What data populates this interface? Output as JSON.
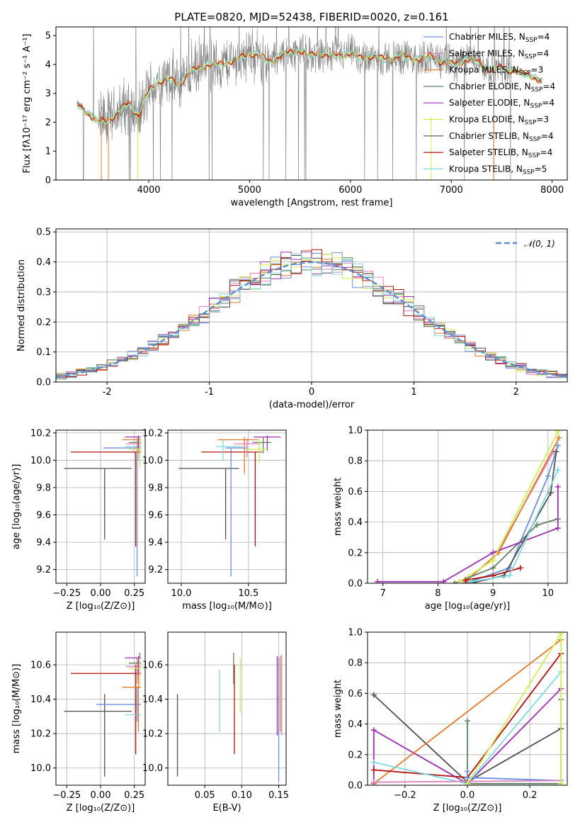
{
  "title": "PLATE=0820, MJD=52438, FIBERID=0020, z=0.161",
  "colors": {
    "chabrier_miles": "#6a8fdc",
    "salpeter_miles": "#e080c0",
    "kroupa_miles": "#e07a28",
    "chabrier_elodie": "#5e8060",
    "salpeter_elodie": "#9a30b0",
    "kroupa_elodie": "#d0ee50",
    "chabrier_stelib": "#505050",
    "salpeter_stelib": "#b01010",
    "kroupa_stelib": "#80d8e0",
    "spectrum": "#808080",
    "gauss": "#5a8ed0"
  },
  "legend": [
    {
      "key": "chabrier_miles",
      "pre": "Chabrier MILES, N",
      "sub": "SSP",
      "post": "=4"
    },
    {
      "key": "salpeter_miles",
      "pre": "Salpeter MILES, N",
      "sub": "SSP",
      "post": "=4"
    },
    {
      "key": "kroupa_miles",
      "pre": "Kroupa MILES, N",
      "sub": "SSP",
      "post": "=3"
    },
    {
      "key": "chabrier_elodie",
      "pre": "Chabrier ELODIE, N",
      "sub": "SSP",
      "post": "=4"
    },
    {
      "key": "salpeter_elodie",
      "pre": "Salpeter ELODIE, N",
      "sub": "SSP",
      "post": "=4"
    },
    {
      "key": "kroupa_elodie",
      "pre": "Kroupa ELODIE, N",
      "sub": "SSP",
      "post": "=3"
    },
    {
      "key": "chabrier_stelib",
      "pre": "Chabrier STELIB, N",
      "sub": "SSP",
      "post": "=4"
    },
    {
      "key": "salpeter_stelib",
      "pre": "Salpeter STELIB, N",
      "sub": "SSP",
      "post": "=4"
    },
    {
      "key": "kroupa_stelib",
      "pre": "Kroupa STELIB, N",
      "sub": "SSP",
      "post": "=5"
    }
  ],
  "chart_data": [
    {
      "id": "spectrum",
      "type": "line",
      "xlabel": "wavelength [Angstrom, rest frame]",
      "ylabel": "Flux [fλ10⁻¹⁷ erg cm⁻² s⁻¹ A⁻¹]",
      "xlim": [
        3080,
        8150
      ],
      "ylim": [
        0,
        5.3
      ],
      "xticks": [
        4000,
        5000,
        6000,
        7000,
        8000
      ],
      "yticks": [
        0,
        1,
        2,
        3,
        4,
        5
      ],
      "model_x": [
        3300,
        3400,
        3500,
        3600,
        3700,
        3800,
        3900,
        4000,
        4100,
        4200,
        4300,
        4400,
        4500,
        4600,
        4700,
        4800,
        4900,
        5000,
        5100,
        5200,
        5300,
        5400,
        5500,
        5600,
        5700,
        5800,
        5900,
        6000,
        6100,
        6200,
        6300,
        6400,
        6500,
        6600,
        6700,
        6800,
        6900,
        7000,
        7100,
        7200,
        7300,
        7400,
        7500,
        7600,
        7700,
        7800,
        7900
      ],
      "model_y": [
        2.6,
        2.3,
        2.0,
        2.1,
        2.3,
        2.7,
        2.2,
        3.1,
        3.4,
        3.5,
        3.3,
        3.7,
        3.9,
        4.0,
        4.0,
        4.1,
        4.2,
        4.4,
        4.3,
        4.1,
        4.3,
        4.4,
        4.5,
        4.3,
        4.4,
        4.3,
        4.3,
        4.4,
        4.2,
        4.3,
        4.2,
        4.2,
        4.3,
        4.2,
        4.2,
        4.3,
        4.1,
        4.0,
        4.1,
        4.2,
        4.0,
        3.8,
        3.9,
        3.8,
        3.7,
        3.6,
        3.4
      ]
    },
    {
      "id": "residuals",
      "type": "histogram",
      "xlabel": "(data-model)/error",
      "ylabel": "Normed distribution",
      "xlim": [
        -2.5,
        2.5
      ],
      "ylim": [
        0,
        0.51
      ],
      "xticks": [
        -2,
        -1,
        0,
        1,
        2
      ],
      "yticks": [
        0.0,
        0.1,
        0.2,
        0.3,
        0.4,
        0.5
      ],
      "gauss_label": "𝒩(0, 1)"
    },
    {
      "id": "age_vs_Z",
      "type": "errorbar",
      "xlabel": "Z [log₁₀(Z/Z⊙)]",
      "ylabel": "age  [log₁₀(age/yr)]",
      "xlim": [
        -0.33,
        0.33
      ],
      "ylim": [
        9.1,
        10.22
      ],
      "xticks": [
        -0.25,
        0.0,
        0.25
      ],
      "xticklabels": [
        "−0.25",
        "0.00",
        "0.25"
      ],
      "yticks": [
        9.2,
        9.4,
        9.6,
        9.8,
        10.0,
        10.2
      ],
      "points": [
        {
          "s": "chabrier_stelib",
          "x": 0.03,
          "xe": [
            0.3,
            0.2
          ],
          "y": 9.94,
          "ye": [
            0.52,
            0
          ]
        },
        {
          "s": "chabrier_miles",
          "x": 0.27,
          "xe": [
            0.25,
            0.03
          ],
          "y": 10.09,
          "ye": [
            0.94,
            0.0
          ]
        },
        {
          "s": "salpeter_stelib",
          "x": 0.26,
          "xe": [
            0.48,
            0.04
          ],
          "y": 10.06,
          "ye": [
            0.69,
            0.0
          ]
        },
        {
          "s": "kroupa_stelib",
          "x": 0.28,
          "xe": [
            0.1,
            0.02
          ],
          "y": 10.1,
          "ye": [
            0.1,
            0.05
          ]
        },
        {
          "s": "salpeter_miles",
          "x": 0.27,
          "xe": [
            0.08,
            0.03
          ],
          "y": 10.12,
          "ye": [
            0.1,
            0.04
          ]
        },
        {
          "s": "kroupa_miles",
          "x": 0.28,
          "xe": [
            0.12,
            0.02
          ],
          "y": 10.15,
          "ye": [
            0.1,
            0.02
          ]
        },
        {
          "s": "salpeter_elodie",
          "x": 0.28,
          "xe": [
            0.1,
            0.02
          ],
          "y": 10.17,
          "ye": [
            0.08,
            0.01
          ]
        },
        {
          "s": "chabrier_elodie",
          "x": 0.29,
          "xe": [
            0.08,
            0.01
          ],
          "y": 10.13,
          "ye": [
            0.08,
            0.04
          ]
        },
        {
          "s": "kroupa_elodie",
          "x": 0.29,
          "xe": [
            0.08,
            0.01
          ],
          "y": 10.08,
          "ye": [
            0.13,
            0.09
          ]
        }
      ]
    },
    {
      "id": "age_vs_mass",
      "type": "errorbar",
      "xlabel": "mass [log₁₀(M/M⊙)]",
      "ylabel": "",
      "xlim": [
        9.9,
        10.78
      ],
      "ylim": [
        9.1,
        10.22
      ],
      "xticks": [
        10.0,
        10.5
      ],
      "xticklabels": [
        "10.0",
        "10.5"
      ],
      "yticks": [
        9.2,
        9.4,
        9.6,
        9.8,
        10.0,
        10.2
      ],
      "points": [
        {
          "s": "chabrier_stelib",
          "x": 10.33,
          "xe": [
            0.35,
            0.1
          ],
          "y": 9.94,
          "ye": [
            0.52,
            0
          ]
        },
        {
          "s": "chabrier_miles",
          "x": 10.37,
          "xe": [
            0.04,
            0.12
          ],
          "y": 10.09,
          "ye": [
            0.94,
            0.0
          ]
        },
        {
          "s": "salpeter_stelib",
          "x": 10.55,
          "xe": [
            0.4,
            0.05
          ],
          "y": 10.06,
          "ye": [
            0.69,
            0.0
          ]
        },
        {
          "s": "kroupa_stelib",
          "x": 10.31,
          "xe": [
            0.05,
            0.15
          ],
          "y": 10.1,
          "ye": [
            0.1,
            0.05
          ]
        },
        {
          "s": "salpeter_miles",
          "x": 10.49,
          "xe": [
            0.1,
            0.1
          ],
          "y": 10.12,
          "ye": [
            0.1,
            0.04
          ]
        },
        {
          "s": "kroupa_miles",
          "x": 10.47,
          "xe": [
            0.2,
            0.1
          ],
          "y": 10.15,
          "ye": [
            0.25,
            0.02
          ]
        },
        {
          "s": "salpeter_elodie",
          "x": 10.64,
          "xe": [
            0.1,
            0.1
          ],
          "y": 10.17,
          "ye": [
            0.1,
            0.01
          ]
        },
        {
          "s": "chabrier_elodie",
          "x": 10.61,
          "xe": [
            0.08,
            0.06
          ],
          "y": 10.13,
          "ye": [
            0.08,
            0.04
          ]
        },
        {
          "s": "kroupa_elodie",
          "x": 10.58,
          "xe": [
            0.1,
            0.06
          ],
          "y": 10.08,
          "ye": [
            0.1,
            0.09
          ]
        }
      ]
    },
    {
      "id": "weight_vs_age",
      "type": "line",
      "xlabel": "age  [log₁₀(age/yr)]",
      "ylabel": "mass weight",
      "xlim": [
        6.72,
        10.35
      ],
      "ylim": [
        0,
        1
      ],
      "xticks": [
        7,
        8,
        9,
        10
      ],
      "yticks": [
        0.0,
        0.2,
        0.4,
        0.6,
        0.8,
        1.0
      ],
      "series": [
        {
          "s": "chabrier_miles",
          "x": [
            8.5,
            9.3,
            10.0,
            10.18
          ],
          "y": [
            0.0,
            0.1,
            0.7,
            0.9
          ]
        },
        {
          "s": "salpeter_miles",
          "x": [
            8.4,
            9.0,
            10.1
          ],
          "y": [
            0.01,
            0.15,
            0.86
          ]
        },
        {
          "s": "kroupa_miles",
          "x": [
            8.5,
            9.1,
            10.2
          ],
          "y": [
            0.01,
            0.2,
            0.95
          ]
        },
        {
          "s": "chabrier_elodie",
          "x": [
            8.3,
            9.0,
            9.8,
            10.18
          ],
          "y": [
            0.0,
            0.1,
            0.38,
            0.42
          ]
        },
        {
          "s": "salpeter_elodie",
          "x": [
            6.9,
            8.1,
            9.0,
            10.18,
            10.18
          ],
          "y": [
            0.01,
            0.01,
            0.2,
            0.36,
            0.63
          ]
        },
        {
          "s": "kroupa_elodie",
          "x": [
            8.4,
            9.0,
            10.18
          ],
          "y": [
            0.01,
            0.15,
            0.99
          ]
        },
        {
          "s": "chabrier_stelib",
          "x": [
            8.6,
            9.2,
            10.05,
            10.15
          ],
          "y": [
            0.0,
            0.05,
            0.59,
            0.86
          ]
        },
        {
          "s": "salpeter_stelib",
          "x": [
            8.5,
            9.0,
            9.5
          ],
          "y": [
            0.02,
            0.05,
            0.1
          ]
        },
        {
          "s": "kroupa_stelib",
          "x": [
            8.6,
            9.3,
            10.18
          ],
          "y": [
            0.01,
            0.05,
            0.74
          ]
        }
      ]
    },
    {
      "id": "mass_vs_Z",
      "type": "errorbar",
      "xlabel": "Z [log₁₀(Z/Z⊙)]",
      "ylabel": "mass [log₁₀(M/M⊙)]",
      "xlim": [
        -0.33,
        0.33
      ],
      "ylim": [
        9.9,
        10.79
      ],
      "xticks": [
        -0.25,
        0.0,
        0.25
      ],
      "xticklabels": [
        "−0.25",
        "0.00",
        "0.25"
      ],
      "yticks": [
        10.0,
        10.2,
        10.4,
        10.6
      ],
      "points": [
        {
          "s": "chabrier_stelib",
          "x": 0.03,
          "xe": [
            0.3,
            0.2
          ],
          "y": 10.33,
          "ye": [
            0.38,
            0.1
          ]
        },
        {
          "s": "chabrier_miles",
          "x": 0.27,
          "xe": [
            0.3,
            0.03
          ],
          "y": 10.37,
          "ye": [
            0.1,
            0.1
          ]
        },
        {
          "s": "salpeter_stelib",
          "x": 0.26,
          "xe": [
            0.48,
            0.04
          ],
          "y": 10.55,
          "ye": [
            0.47,
            0.05
          ]
        },
        {
          "s": "kroupa_stelib",
          "x": 0.28,
          "xe": [
            0.1,
            0.02
          ],
          "y": 10.31,
          "ye": [
            0.05,
            0.1
          ]
        },
        {
          "s": "salpeter_miles",
          "x": 0.27,
          "xe": [
            0.08,
            0.03
          ],
          "y": 10.59,
          "ye": [
            0.1,
            0.05
          ]
        },
        {
          "s": "kroupa_miles",
          "x": 0.28,
          "xe": [
            0.12,
            0.02
          ],
          "y": 10.47,
          "ye": [
            0.26,
            0.18
          ]
        },
        {
          "s": "salpeter_elodie",
          "x": 0.28,
          "xe": [
            0.1,
            0.02
          ],
          "y": 10.64,
          "ye": [
            0.1,
            0.01
          ]
        },
        {
          "s": "chabrier_elodie",
          "x": 0.29,
          "xe": [
            0.08,
            0.01
          ],
          "y": 10.61,
          "ye": [
            0.08,
            0.06
          ]
        },
        {
          "s": "kroupa_elodie",
          "x": 0.29,
          "xe": [
            0.08,
            0.01
          ],
          "y": 10.58,
          "ye": [
            0.1,
            0.06
          ]
        }
      ]
    },
    {
      "id": "mass_vs_ebv",
      "type": "errorbar",
      "xlabel": "E(B-V)",
      "ylabel": "",
      "xlim": [
        0.0,
        0.16
      ],
      "ylim": [
        9.9,
        10.79
      ],
      "xticks": [
        0.05,
        0.1,
        0.15
      ],
      "xticklabels": [
        "0.05",
        "0.10",
        "0.15"
      ],
      "yticks": [
        10.0,
        10.2,
        10.4,
        10.6
      ],
      "points": [
        {
          "s": "chabrier_stelib",
          "x": 0.013,
          "y": 10.33,
          "ye": [
            0.38,
            0.1
          ]
        },
        {
          "s": "kroupa_stelib",
          "x": 0.07,
          "y": 10.31,
          "ye": [
            0.1,
            0.26
          ]
        },
        {
          "s": "salpeter_stelib",
          "x": 0.09,
          "y": 10.55,
          "ye": [
            0.47,
            0.05
          ]
        },
        {
          "s": "chabrier_elodie",
          "x": 0.089,
          "y": 10.61,
          "ye": [
            0.12,
            0.06
          ]
        },
        {
          "s": "kroupa_elodie",
          "x": 0.098,
          "y": 10.58,
          "ye": [
            0.26,
            0.06
          ]
        },
        {
          "s": "salpeter_elodie",
          "x": 0.148,
          "y": 10.64,
          "ye": [
            0.45,
            0.01
          ]
        },
        {
          "s": "chabrier_miles",
          "x": 0.15,
          "y": 10.37,
          "ye": [
            0.45,
            0.27
          ]
        },
        {
          "s": "kroupa_miles",
          "x": 0.152,
          "y": 10.47,
          "ye": [
            0.26,
            0.18
          ]
        },
        {
          "s": "salpeter_miles",
          "x": 0.154,
          "y": 10.59,
          "ye": [
            0.4,
            0.07
          ]
        }
      ]
    },
    {
      "id": "weight_vs_Z",
      "type": "line",
      "xlabel": "Z [log₁₀(Z/Z⊙)]",
      "ylabel": "mass weight",
      "xlim": [
        -0.32,
        0.32
      ],
      "ylim": [
        0,
        1
      ],
      "xticks": [
        -0.2,
        0.0,
        0.2
      ],
      "xticklabels": [
        "−0.2",
        "0.0",
        "0.2"
      ],
      "yticks": [
        0.0,
        0.2,
        0.4,
        0.6,
        0.8,
        1.0
      ],
      "series": [
        {
          "s": "chabrier_stelib",
          "x": [
            -0.3,
            0.0,
            0.3
          ],
          "y": [
            0.59,
            0.02,
            0.37
          ]
        },
        {
          "s": "chabrier_elodie",
          "x": [
            0.0,
            0.0,
            0.3,
            0.3
          ],
          "y": [
            0.42,
            0.01,
            0.01,
            0.56
          ]
        },
        {
          "s": "salpeter_elodie",
          "x": [
            -0.3,
            -0.3,
            0.0,
            0.3
          ],
          "y": [
            0.01,
            0.36,
            0.01,
            0.63
          ]
        },
        {
          "s": "kroupa_miles",
          "x": [
            -0.3,
            0.3
          ],
          "y": [
            0.01,
            0.95
          ]
        },
        {
          "s": "salpeter_stelib",
          "x": [
            -0.3,
            0.0,
            0.3
          ],
          "y": [
            0.1,
            0.05,
            0.86
          ]
        },
        {
          "s": "kroupa_stelib",
          "x": [
            -0.3,
            0.0,
            0.3
          ],
          "y": [
            0.15,
            0.01,
            0.74
          ]
        },
        {
          "s": "chabrier_miles",
          "x": [
            0.0,
            0.0,
            0.3
          ],
          "y": [
            0.09,
            0.05,
            0.03
          ]
        },
        {
          "s": "salpeter_miles",
          "x": [
            -0.3,
            0.3
          ],
          "y": [
            0.02,
            0.03
          ]
        },
        {
          "s": "kroupa_elodie",
          "x": [
            0.0,
            0.3,
            0.3
          ],
          "y": [
            0.01,
            0.99,
            0.01
          ]
        }
      ]
    }
  ]
}
